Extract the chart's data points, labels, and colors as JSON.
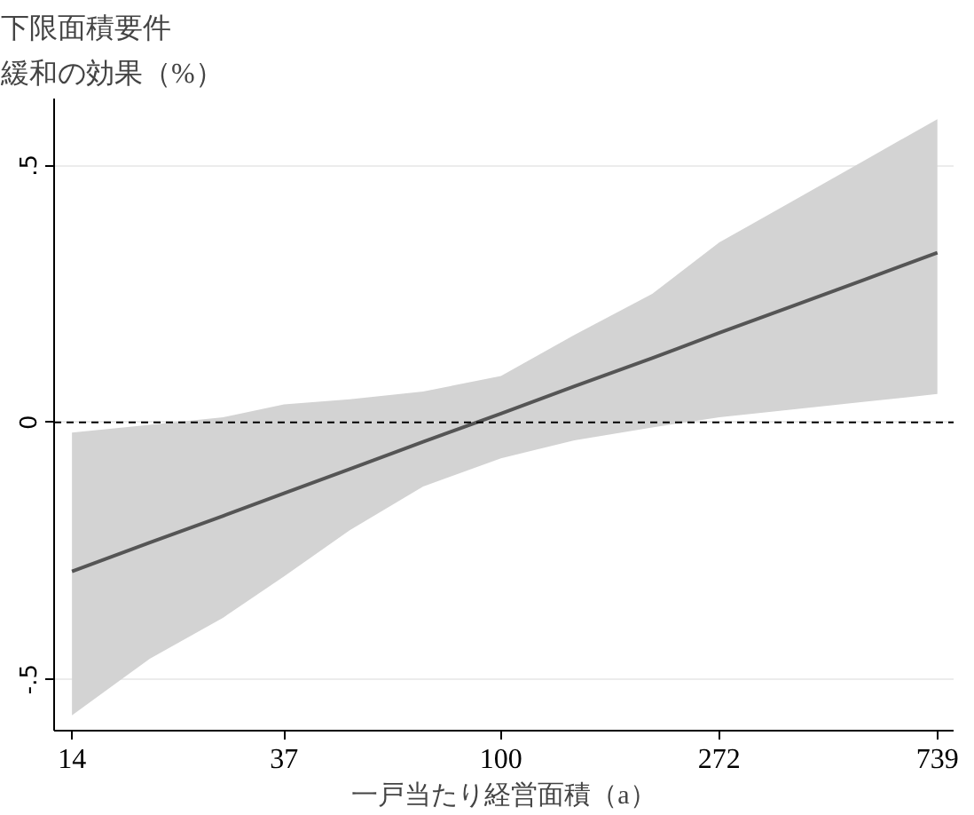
{
  "chart_data": {
    "type": "line",
    "ylabel": "下限面積要件緩和の効果（%）",
    "xlabel": "一戸当たり経営面積（a）",
    "log": "x",
    "x": [
      14,
      20,
      28,
      37,
      50,
      70,
      100,
      140,
      200,
      272,
      380,
      530,
      739
    ],
    "series": [
      {
        "color": "#555555",
        "values": [
          -0.29,
          -0.234,
          -0.182,
          -0.138,
          -0.091,
          -0.038,
          0.017,
          0.07,
          0.125,
          0.174,
          0.226,
          0.278,
          0.33
        ],
        "lower": [
          -0.57,
          -0.46,
          -0.38,
          -0.3,
          -0.21,
          -0.125,
          -0.07,
          -0.035,
          -0.01,
          0.01,
          0.025,
          0.04,
          0.055
        ],
        "upper": [
          -0.02,
          -0.005,
          0.01,
          0.035,
          0.045,
          0.06,
          0.09,
          0.17,
          0.25,
          0.35,
          0.43,
          0.51,
          0.59
        ]
      }
    ],
    "xlim": [
      12.9,
      796
    ],
    "xticks": [
      14,
      37,
      100,
      272,
      739
    ],
    "ylim": [
      -0.6,
      0.63
    ],
    "yticks": [
      {
        "value": 0.5,
        "label": ".5"
      },
      0,
      {
        "value": -0.5,
        "label": "-.5"
      }
    ],
    "grid": "y",
    "marker": "none",
    "line_style": "solid",
    "ref_lines": [
      {
        "axis": "y",
        "value": 0,
        "label": null,
        "color": "#000000",
        "line_style": "dashed"
      }
    ]
  }
}
